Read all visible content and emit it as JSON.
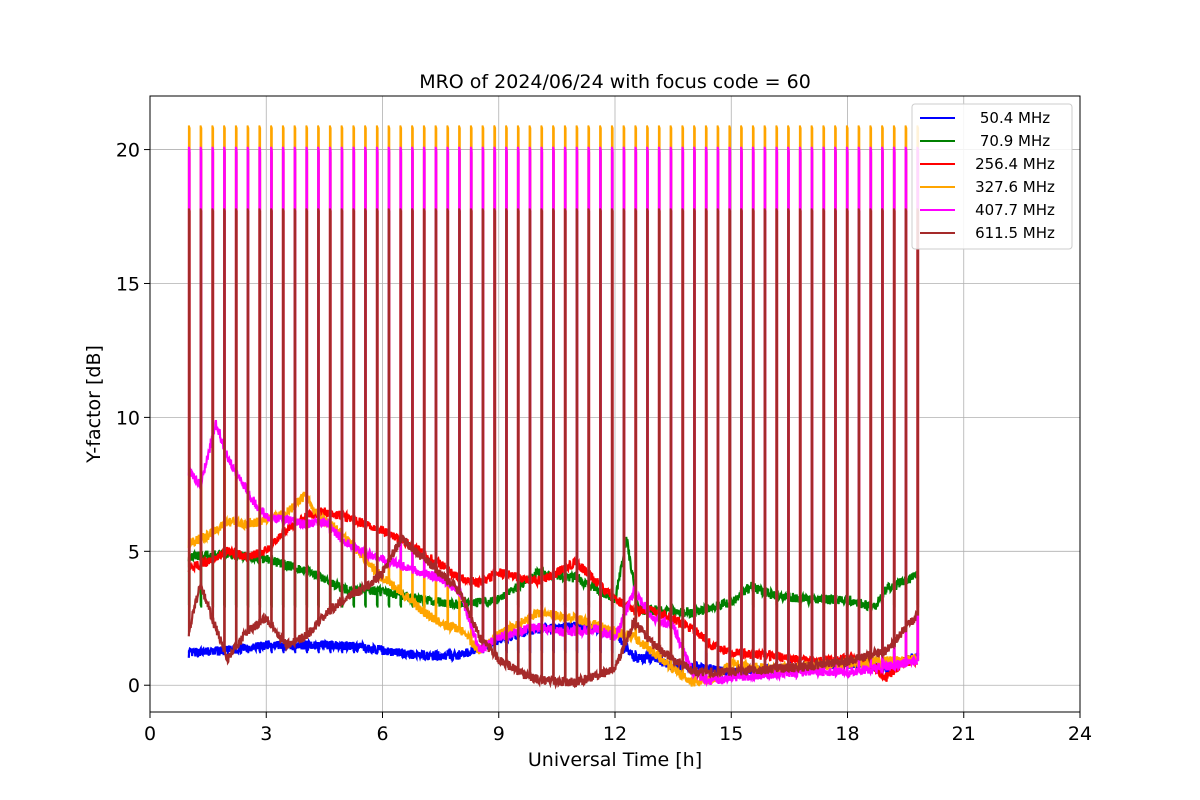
{
  "chart_data": {
    "type": "line",
    "title": "MRO of 2024/06/24 with focus code = 60",
    "xlabel": "Universal Time [h]",
    "ylabel": "Y-factor [dB]",
    "xlim": [
      0,
      24
    ],
    "ylim": [
      -1,
      22
    ],
    "xticks": [
      0,
      3,
      6,
      9,
      12,
      15,
      18,
      21,
      24
    ],
    "yticks": [
      0,
      5,
      10,
      15,
      20
    ],
    "grid": true,
    "legend_position": "top-right",
    "pulse": {
      "start": 1.0,
      "end": 19.8,
      "count": 62
    },
    "series": [
      {
        "name": "50.4 MHz",
        "color": "#0000ff",
        "peak": 1.3,
        "baseline": [
          [
            1.0,
            1.2
          ],
          [
            2,
            1.3
          ],
          [
            3,
            1.5
          ],
          [
            4,
            1.5
          ],
          [
            5,
            1.5
          ],
          [
            6,
            1.3
          ],
          [
            7,
            1.1
          ],
          [
            8,
            1.1
          ],
          [
            9,
            1.7
          ],
          [
            10,
            2.1
          ],
          [
            11,
            2.2
          ],
          [
            12,
            2.0
          ],
          [
            12.5,
            1.0
          ],
          [
            13,
            1.0
          ],
          [
            13.5,
            0.7
          ],
          [
            14,
            0.7
          ],
          [
            15,
            0.5
          ],
          [
            16,
            0.6
          ],
          [
            17,
            0.7
          ],
          [
            18,
            0.8
          ],
          [
            19,
            0.6
          ],
          [
            19.8,
            1.1
          ]
        ]
      },
      {
        "name": "70.9 MHz",
        "color": "#008000",
        "peak": 3.0,
        "baseline": [
          [
            1.0,
            4.8
          ],
          [
            2,
            4.9
          ],
          [
            3,
            4.7
          ],
          [
            4,
            4.3
          ],
          [
            5,
            3.6
          ],
          [
            6,
            3.5
          ],
          [
            7,
            3.2
          ],
          [
            8,
            3.0
          ],
          [
            8.5,
            3.1
          ],
          [
            9,
            3.2
          ],
          [
            10,
            4.2
          ],
          [
            11,
            4.0
          ],
          [
            12,
            3.2
          ],
          [
            12.3,
            5.5
          ],
          [
            12.6,
            2.8
          ],
          [
            13,
            2.8
          ],
          [
            14,
            2.7
          ],
          [
            15,
            3.1
          ],
          [
            15.5,
            3.7
          ],
          [
            16,
            3.4
          ],
          [
            17,
            3.2
          ],
          [
            18,
            3.2
          ],
          [
            18.7,
            2.9
          ],
          [
            19,
            3.6
          ],
          [
            19.8,
            4.1
          ]
        ]
      },
      {
        "name": "256.4 MHz",
        "color": "#ff0000",
        "peak": 20.0,
        "baseline": [
          [
            1.0,
            4.4
          ],
          [
            1.5,
            4.6
          ],
          [
            2,
            5.0
          ],
          [
            2.5,
            4.8
          ],
          [
            3,
            5.0
          ],
          [
            3.5,
            5.8
          ],
          [
            4,
            6.3
          ],
          [
            4.5,
            6.5
          ],
          [
            5,
            6.3
          ],
          [
            6,
            5.8
          ],
          [
            7,
            5.0
          ],
          [
            8,
            4.0
          ],
          [
            8.5,
            3.8
          ],
          [
            9,
            4.2
          ],
          [
            10,
            3.9
          ],
          [
            10.5,
            4.2
          ],
          [
            11,
            4.6
          ],
          [
            12,
            3.2
          ],
          [
            12.5,
            2.8
          ],
          [
            13,
            2.8
          ],
          [
            14,
            2.1
          ],
          [
            14.5,
            1.5
          ],
          [
            15,
            1.2
          ],
          [
            16,
            1.1
          ],
          [
            17,
            0.9
          ],
          [
            18,
            1.0
          ],
          [
            18.5,
            0.9
          ],
          [
            19,
            0.3
          ],
          [
            19.5,
            0.9
          ],
          [
            19.8,
            0.9
          ]
        ]
      },
      {
        "name": "327.6 MHz",
        "color": "#ffa500",
        "peak": 20.9,
        "baseline": [
          [
            1.0,
            5.3
          ],
          [
            1.5,
            5.6
          ],
          [
            2,
            6.1
          ],
          [
            2.5,
            6.0
          ],
          [
            3,
            6.2
          ],
          [
            3.5,
            6.4
          ],
          [
            4,
            7.1
          ],
          [
            4.3,
            6.4
          ],
          [
            5,
            5.6
          ],
          [
            5.5,
            4.8
          ],
          [
            6,
            4.0
          ],
          [
            6.5,
            3.5
          ],
          [
            7,
            2.8
          ],
          [
            7.5,
            2.3
          ],
          [
            8,
            2.1
          ],
          [
            8.5,
            1.3
          ],
          [
            9,
            1.9
          ],
          [
            9.5,
            2.3
          ],
          [
            10,
            2.7
          ],
          [
            10.5,
            2.6
          ],
          [
            11,
            2.5
          ],
          [
            12,
            2.0
          ],
          [
            12.5,
            1.8
          ],
          [
            13,
            1.2
          ],
          [
            13.5,
            0.6
          ],
          [
            14,
            0.1
          ],
          [
            14.5,
            0.2
          ],
          [
            15,
            0.8
          ],
          [
            16,
            0.6
          ],
          [
            17,
            0.7
          ],
          [
            18,
            0.8
          ],
          [
            19,
            0.9
          ],
          [
            19.8,
            1.0
          ]
        ]
      },
      {
        "name": "407.7 MHz",
        "color": "#ff00ff",
        "peak": 20.1,
        "baseline": [
          [
            1.0,
            8.0
          ],
          [
            1.3,
            7.5
          ],
          [
            1.7,
            9.8
          ],
          [
            2.0,
            8.5
          ],
          [
            2.3,
            7.8
          ],
          [
            2.7,
            6.8
          ],
          [
            3.0,
            6.3
          ],
          [
            3.5,
            6.2
          ],
          [
            4,
            6.0
          ],
          [
            4.5,
            6.1
          ],
          [
            5,
            5.4
          ],
          [
            5.5,
            5.0
          ],
          [
            6,
            4.7
          ],
          [
            6.5,
            4.5
          ],
          [
            7,
            4.2
          ],
          [
            7.5,
            4.0
          ],
          [
            8,
            3.5
          ],
          [
            8.5,
            1.3
          ],
          [
            9,
            1.8
          ],
          [
            9.5,
            2.0
          ],
          [
            10,
            2.2
          ],
          [
            10.5,
            2.0
          ],
          [
            11,
            2.0
          ],
          [
            11.5,
            2.1
          ],
          [
            12,
            1.8
          ],
          [
            12.5,
            3.5
          ],
          [
            13,
            2.5
          ],
          [
            13.5,
            2.2
          ],
          [
            14,
            0.5
          ],
          [
            14.5,
            0.1
          ],
          [
            15,
            0.3
          ],
          [
            16,
            0.4
          ],
          [
            17,
            0.5
          ],
          [
            18,
            0.5
          ],
          [
            19,
            0.7
          ],
          [
            19.8,
            0.9
          ]
        ]
      },
      {
        "name": "611.5 MHz",
        "color": "#a52a2a",
        "peak": 17.8,
        "baseline": [
          [
            1.0,
            2.0
          ],
          [
            1.3,
            3.8
          ],
          [
            1.6,
            2.5
          ],
          [
            2,
            1.0
          ],
          [
            2.5,
            2.0
          ],
          [
            3,
            2.5
          ],
          [
            3.5,
            1.5
          ],
          [
            4,
            1.8
          ],
          [
            4.5,
            2.6
          ],
          [
            5,
            3.2
          ],
          [
            5.5,
            3.6
          ],
          [
            6,
            4.2
          ],
          [
            6.5,
            5.5
          ],
          [
            7,
            4.8
          ],
          [
            7.5,
            4.2
          ],
          [
            8,
            3.5
          ],
          [
            8.5,
            1.8
          ],
          [
            9,
            1.0
          ],
          [
            9.5,
            0.5
          ],
          [
            10,
            0.2
          ],
          [
            11,
            0.1
          ],
          [
            12,
            0.6
          ],
          [
            12.5,
            2.4
          ],
          [
            13,
            1.5
          ],
          [
            14,
            0.5
          ],
          [
            15,
            0.5
          ],
          [
            16,
            0.6
          ],
          [
            17,
            0.7
          ],
          [
            18,
            0.9
          ],
          [
            19,
            1.3
          ],
          [
            19.8,
            2.6
          ]
        ]
      }
    ]
  }
}
